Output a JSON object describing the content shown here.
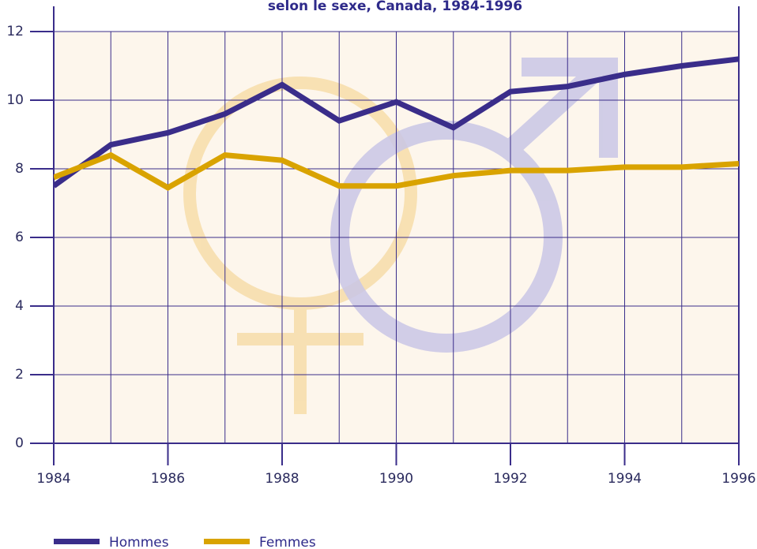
{
  "chart_data": {
    "type": "line",
    "title": "selon le sexe, Canada, 1984-1996",
    "x": [
      1984,
      1985,
      1986,
      1987,
      1988,
      1989,
      1990,
      1991,
      1992,
      1993,
      1994,
      1995,
      1996
    ],
    "series": [
      {
        "name": "Hommes",
        "color": "#3a2d8a",
        "values": [
          7.5,
          8.7,
          9.05,
          9.6,
          10.45,
          9.4,
          9.95,
          9.2,
          10.25,
          10.4,
          10.75,
          11.0,
          11.2
        ]
      },
      {
        "name": "Femmes",
        "color": "#d9a300",
        "values": [
          7.75,
          8.4,
          7.45,
          8.4,
          8.25,
          7.5,
          7.5,
          7.8,
          7.95,
          7.95,
          8.05,
          8.05,
          8.15
        ]
      }
    ],
    "xlim": [
      1984,
      1996
    ],
    "xticks": [
      1984,
      1986,
      1988,
      1990,
      1992,
      1994,
      1996
    ],
    "ylim": [
      0,
      12
    ],
    "yticks": [
      0,
      2,
      4,
      6,
      8,
      10,
      12
    ],
    "grid": true
  }
}
